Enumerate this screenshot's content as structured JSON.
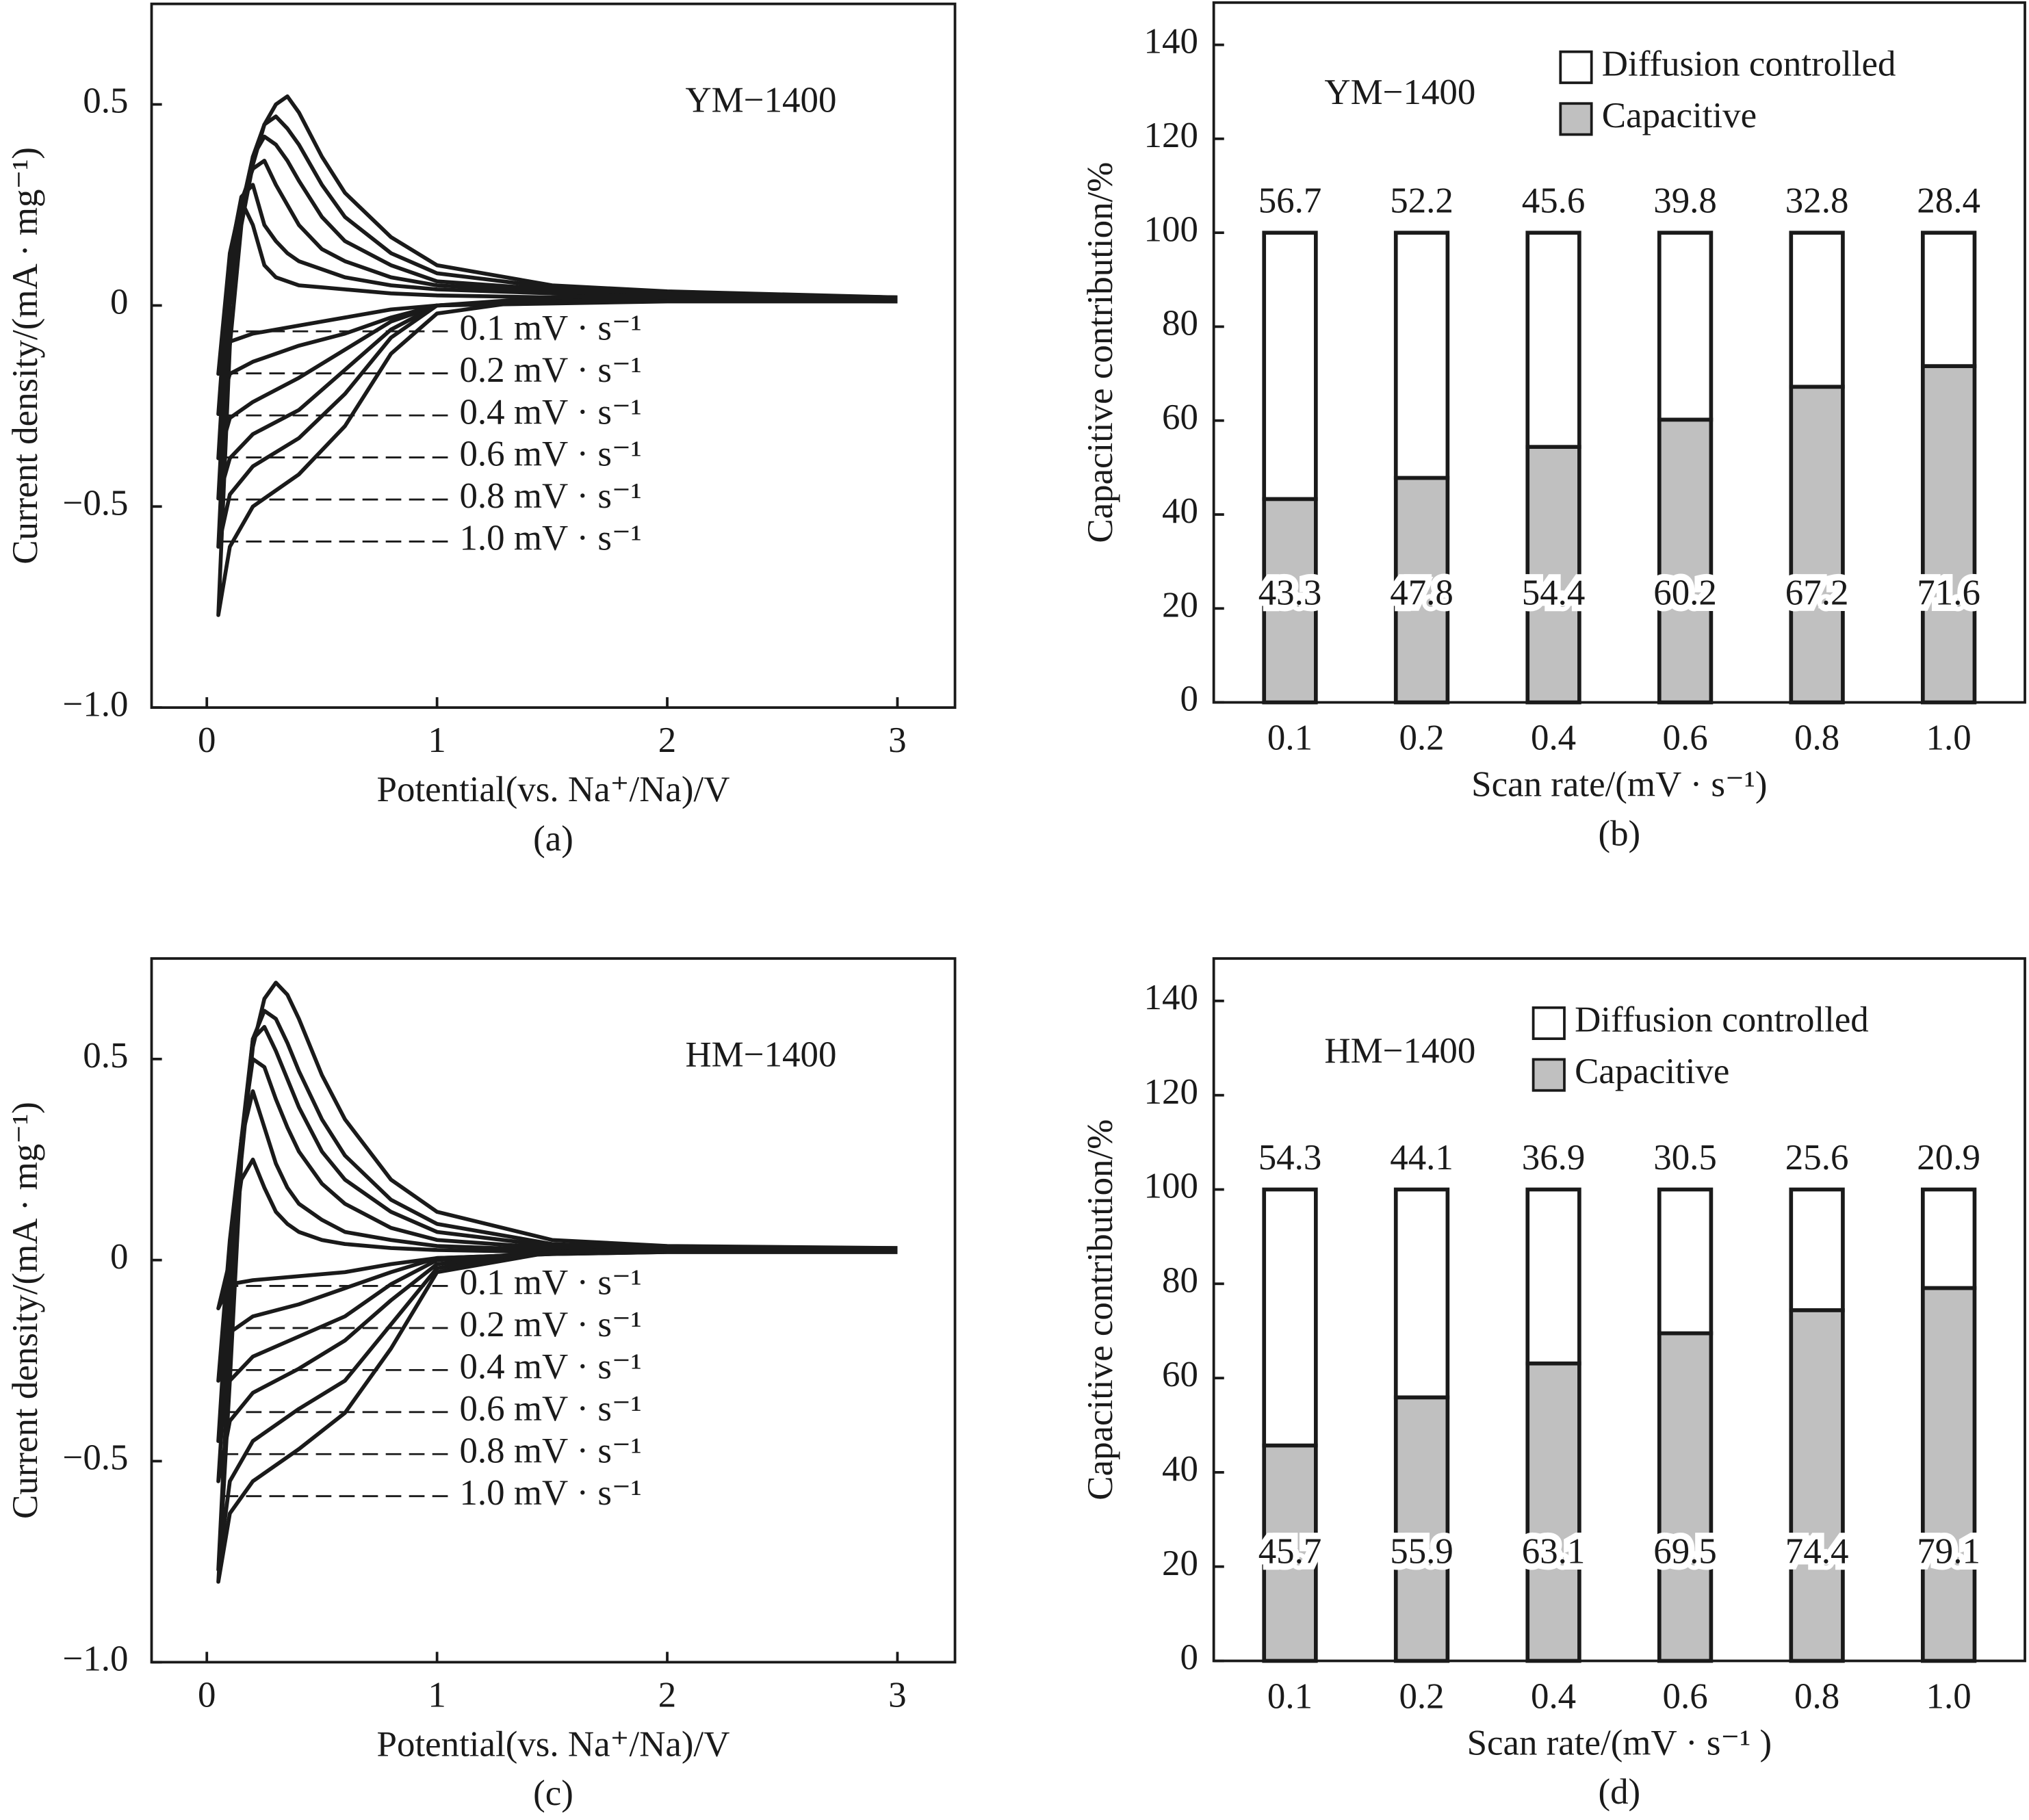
{
  "chart_data": [
    {
      "type": "line",
      "annotation": "YM−1400",
      "caption": "(a)",
      "x_label": "Potential(vs. Na⁺/Na)/V",
      "y_label": "Current density/(mA · mg⁻¹)",
      "x": [
        3,
        2,
        1.5,
        1,
        0.8,
        0.6,
        0.4,
        0.2,
        0.1,
        0.05,
        0.1,
        0.15,
        0.2,
        0.25,
        0.3,
        0.35,
        0.4,
        0.5,
        0.6,
        0.8,
        1,
        1.5,
        2,
        3
      ],
      "series": [
        {
          "name": "0.1 mV · s⁻¹",
          "color": "#1a1a1a",
          "values": [
            0.01,
            0.01,
            0.005,
            0,
            -0.01,
            -0.03,
            -0.05,
            -0.07,
            -0.09,
            -0.17,
            0.13,
            0.26,
            0.2,
            0.1,
            0.07,
            0.06,
            0.05,
            0.045,
            0.04,
            0.03,
            0.025,
            0.02,
            0.015,
            0.01
          ]
        },
        {
          "name": "0.2 mV · s⁻¹",
          "color": "#1a1a1a",
          "values": [
            0.01,
            0.015,
            0.01,
            0,
            -0.03,
            -0.07,
            -0.1,
            -0.14,
            -0.17,
            -0.27,
            0.12,
            0.27,
            0.3,
            0.2,
            0.16,
            0.13,
            0.11,
            0.09,
            0.07,
            0.05,
            0.04,
            0.03,
            0.02,
            0.015
          ]
        },
        {
          "name": "0.4 mV · s⁻¹",
          "color": "#1a1a1a",
          "values": [
            0.015,
            0.02,
            0.01,
            0,
            -0.04,
            -0.11,
            -0.18,
            -0.24,
            -0.28,
            -0.38,
            0.1,
            0.26,
            0.34,
            0.36,
            0.3,
            0.25,
            0.2,
            0.14,
            0.11,
            0.07,
            0.05,
            0.035,
            0.025,
            0.02
          ]
        },
        {
          "name": "0.6 mV · s⁻¹",
          "color": "#1a1a1a",
          "values": [
            0.02,
            0.02,
            0.015,
            0,
            -0.06,
            -0.16,
            -0.26,
            -0.32,
            -0.38,
            -0.48,
            0.05,
            0.24,
            0.37,
            0.42,
            0.4,
            0.36,
            0.31,
            0.22,
            0.16,
            0.1,
            0.06,
            0.04,
            0.03,
            0.02
          ]
        },
        {
          "name": "0.8 mV · s⁻¹",
          "color": "#1a1a1a",
          "values": [
            0.02,
            0.025,
            0.02,
            0,
            -0.08,
            -0.22,
            -0.33,
            -0.4,
            -0.47,
            -0.6,
            0,
            0.22,
            0.37,
            0.45,
            0.47,
            0.44,
            0.4,
            0.3,
            0.22,
            0.13,
            0.08,
            0.045,
            0.03,
            0.02
          ]
        },
        {
          "name": "1.0 mV · s⁻¹",
          "color": "#1a1a1a",
          "values": [
            0.02,
            0.03,
            0.02,
            -0.02,
            -0.12,
            -0.3,
            -0.42,
            -0.5,
            -0.6,
            -0.77,
            -0.1,
            0.2,
            0.35,
            0.45,
            0.5,
            0.52,
            0.48,
            0.37,
            0.28,
            0.17,
            0.1,
            0.05,
            0.035,
            0.02
          ]
        }
      ],
      "xlim": [
        -0.24,
        3.25
      ],
      "ylim": [
        -1.0,
        0.75
      ],
      "xticks": [
        0,
        1,
        2,
        3
      ],
      "yticks": [
        {
          "value": -1.0,
          "label": "−1.0"
        },
        {
          "value": -0.5,
          "label": "−0.5"
        },
        0,
        0.5
      ]
    },
    {
      "type": "bar",
      "stacked": true,
      "annotation": "YM−1400",
      "caption": "(b)",
      "x_label": "Scan rate/(mV · s⁻¹)",
      "y_label": "Capacitive  contribution/%",
      "categories": [
        "0.1",
        "0.2",
        "0.4",
        "0.6",
        "0.8",
        "1.0"
      ],
      "series": [
        {
          "name": "Capacitive",
          "color": "#c0c0c0",
          "values": [
            43.3,
            47.8,
            54.4,
            60.2,
            67.2,
            71.6
          ]
        },
        {
          "name": "Diffusion controlled",
          "color": "#ffffff",
          "values": [
            56.7,
            52.2,
            45.6,
            39.8,
            32.8,
            28.4
          ]
        }
      ],
      "ylim": [
        0,
        149
      ],
      "yticks": [
        0,
        20,
        40,
        60,
        80,
        100,
        120,
        140
      ],
      "legend": "upper right"
    },
    {
      "type": "line",
      "annotation": "HM−1400",
      "caption": "(c)",
      "x_label": "Potential(vs. Na⁺/Na)/V",
      "y_label": "Current density/(mA · mg⁻¹)",
      "x": [
        3,
        2,
        1.5,
        1,
        0.8,
        0.6,
        0.4,
        0.2,
        0.1,
        0.05,
        0.1,
        0.15,
        0.2,
        0.25,
        0.3,
        0.35,
        0.4,
        0.5,
        0.6,
        0.8,
        1,
        1.5,
        2,
        3
      ],
      "series": [
        {
          "name": "0.1 mV · s⁻¹",
          "color": "#1a1a1a",
          "values": [
            0.02,
            0.02,
            0.015,
            0.005,
            -0.01,
            -0.03,
            -0.04,
            -0.05,
            -0.06,
            -0.12,
            0,
            0.2,
            0.25,
            0.18,
            0.12,
            0.09,
            0.07,
            0.05,
            0.04,
            0.03,
            0.025,
            0.02,
            0.02,
            0.02
          ]
        },
        {
          "name": "0.2 mV · s⁻¹",
          "color": "#1a1a1a",
          "values": [
            0.02,
            0.02,
            0.015,
            0.005,
            -0.03,
            -0.07,
            -0.11,
            -0.14,
            -0.18,
            -0.3,
            0.05,
            0.3,
            0.42,
            0.33,
            0.24,
            0.18,
            0.14,
            0.1,
            0.07,
            0.05,
            0.035,
            0.025,
            0.02,
            0.02
          ]
        },
        {
          "name": "0.4 mV · s⁻¹",
          "color": "#1a1a1a",
          "values": [
            0.025,
            0.025,
            0.02,
            0,
            -0.06,
            -0.14,
            -0.19,
            -0.24,
            -0.3,
            -0.45,
            0,
            0.3,
            0.5,
            0.48,
            0.4,
            0.33,
            0.27,
            0.19,
            0.14,
            0.08,
            0.05,
            0.03,
            0.025,
            0.025
          ]
        },
        {
          "name": "0.6 mV · s⁻¹",
          "color": "#1a1a1a",
          "values": [
            0.025,
            0.025,
            0.02,
            -0.01,
            -0.1,
            -0.2,
            -0.27,
            -0.33,
            -0.4,
            -0.55,
            -0.1,
            0.3,
            0.55,
            0.58,
            0.52,
            0.45,
            0.38,
            0.27,
            0.2,
            0.12,
            0.07,
            0.035,
            0.03,
            0.025
          ]
        },
        {
          "name": "0.8 mV · s⁻¹",
          "color": "#1a1a1a",
          "values": [
            0.03,
            0.03,
            0.02,
            -0.02,
            -0.16,
            -0.3,
            -0.37,
            -0.45,
            -0.55,
            -0.77,
            -0.2,
            0.28,
            0.55,
            0.62,
            0.6,
            0.54,
            0.47,
            0.35,
            0.26,
            0.15,
            0.09,
            0.04,
            0.03,
            0.03
          ]
        },
        {
          "name": "1.0 mV · s⁻¹",
          "color": "#1a1a1a",
          "values": [
            0.03,
            0.03,
            0.02,
            -0.03,
            -0.22,
            -0.38,
            -0.47,
            -0.55,
            -0.63,
            -0.8,
            -0.3,
            0.25,
            0.53,
            0.65,
            0.69,
            0.66,
            0.6,
            0.46,
            0.35,
            0.2,
            0.12,
            0.05,
            0.035,
            0.03
          ]
        }
      ],
      "xlim": [
        -0.24,
        3.25
      ],
      "ylim": [
        -1.0,
        0.75
      ],
      "xticks": [
        0,
        1,
        2,
        3
      ],
      "yticks": [
        {
          "value": -1.0,
          "label": "−1.0"
        },
        {
          "value": -0.5,
          "label": "−0.5"
        },
        0,
        0.5
      ]
    },
    {
      "type": "bar",
      "stacked": true,
      "annotation": "HM−1400",
      "caption": "(d)",
      "x_label": "Scan rate/(mV · s⁻¹ )",
      "y_label": "Capacitive  contribution/%",
      "categories": [
        "0.1",
        "0.2",
        "0.4",
        "0.6",
        "0.8",
        "1.0"
      ],
      "series": [
        {
          "name": "Capacitive",
          "color": "#c0c0c0",
          "values": [
            45.7,
            55.9,
            63.1,
            69.5,
            74.4,
            79.1
          ]
        },
        {
          "name": "Diffusion controlled",
          "color": "#ffffff",
          "values": [
            54.3,
            44.1,
            36.9,
            30.5,
            25.6,
            20.9
          ]
        }
      ],
      "ylim": [
        0,
        149
      ],
      "yticks": [
        0,
        20,
        40,
        60,
        80,
        100,
        120,
        140
      ],
      "legend": "upper right"
    }
  ]
}
